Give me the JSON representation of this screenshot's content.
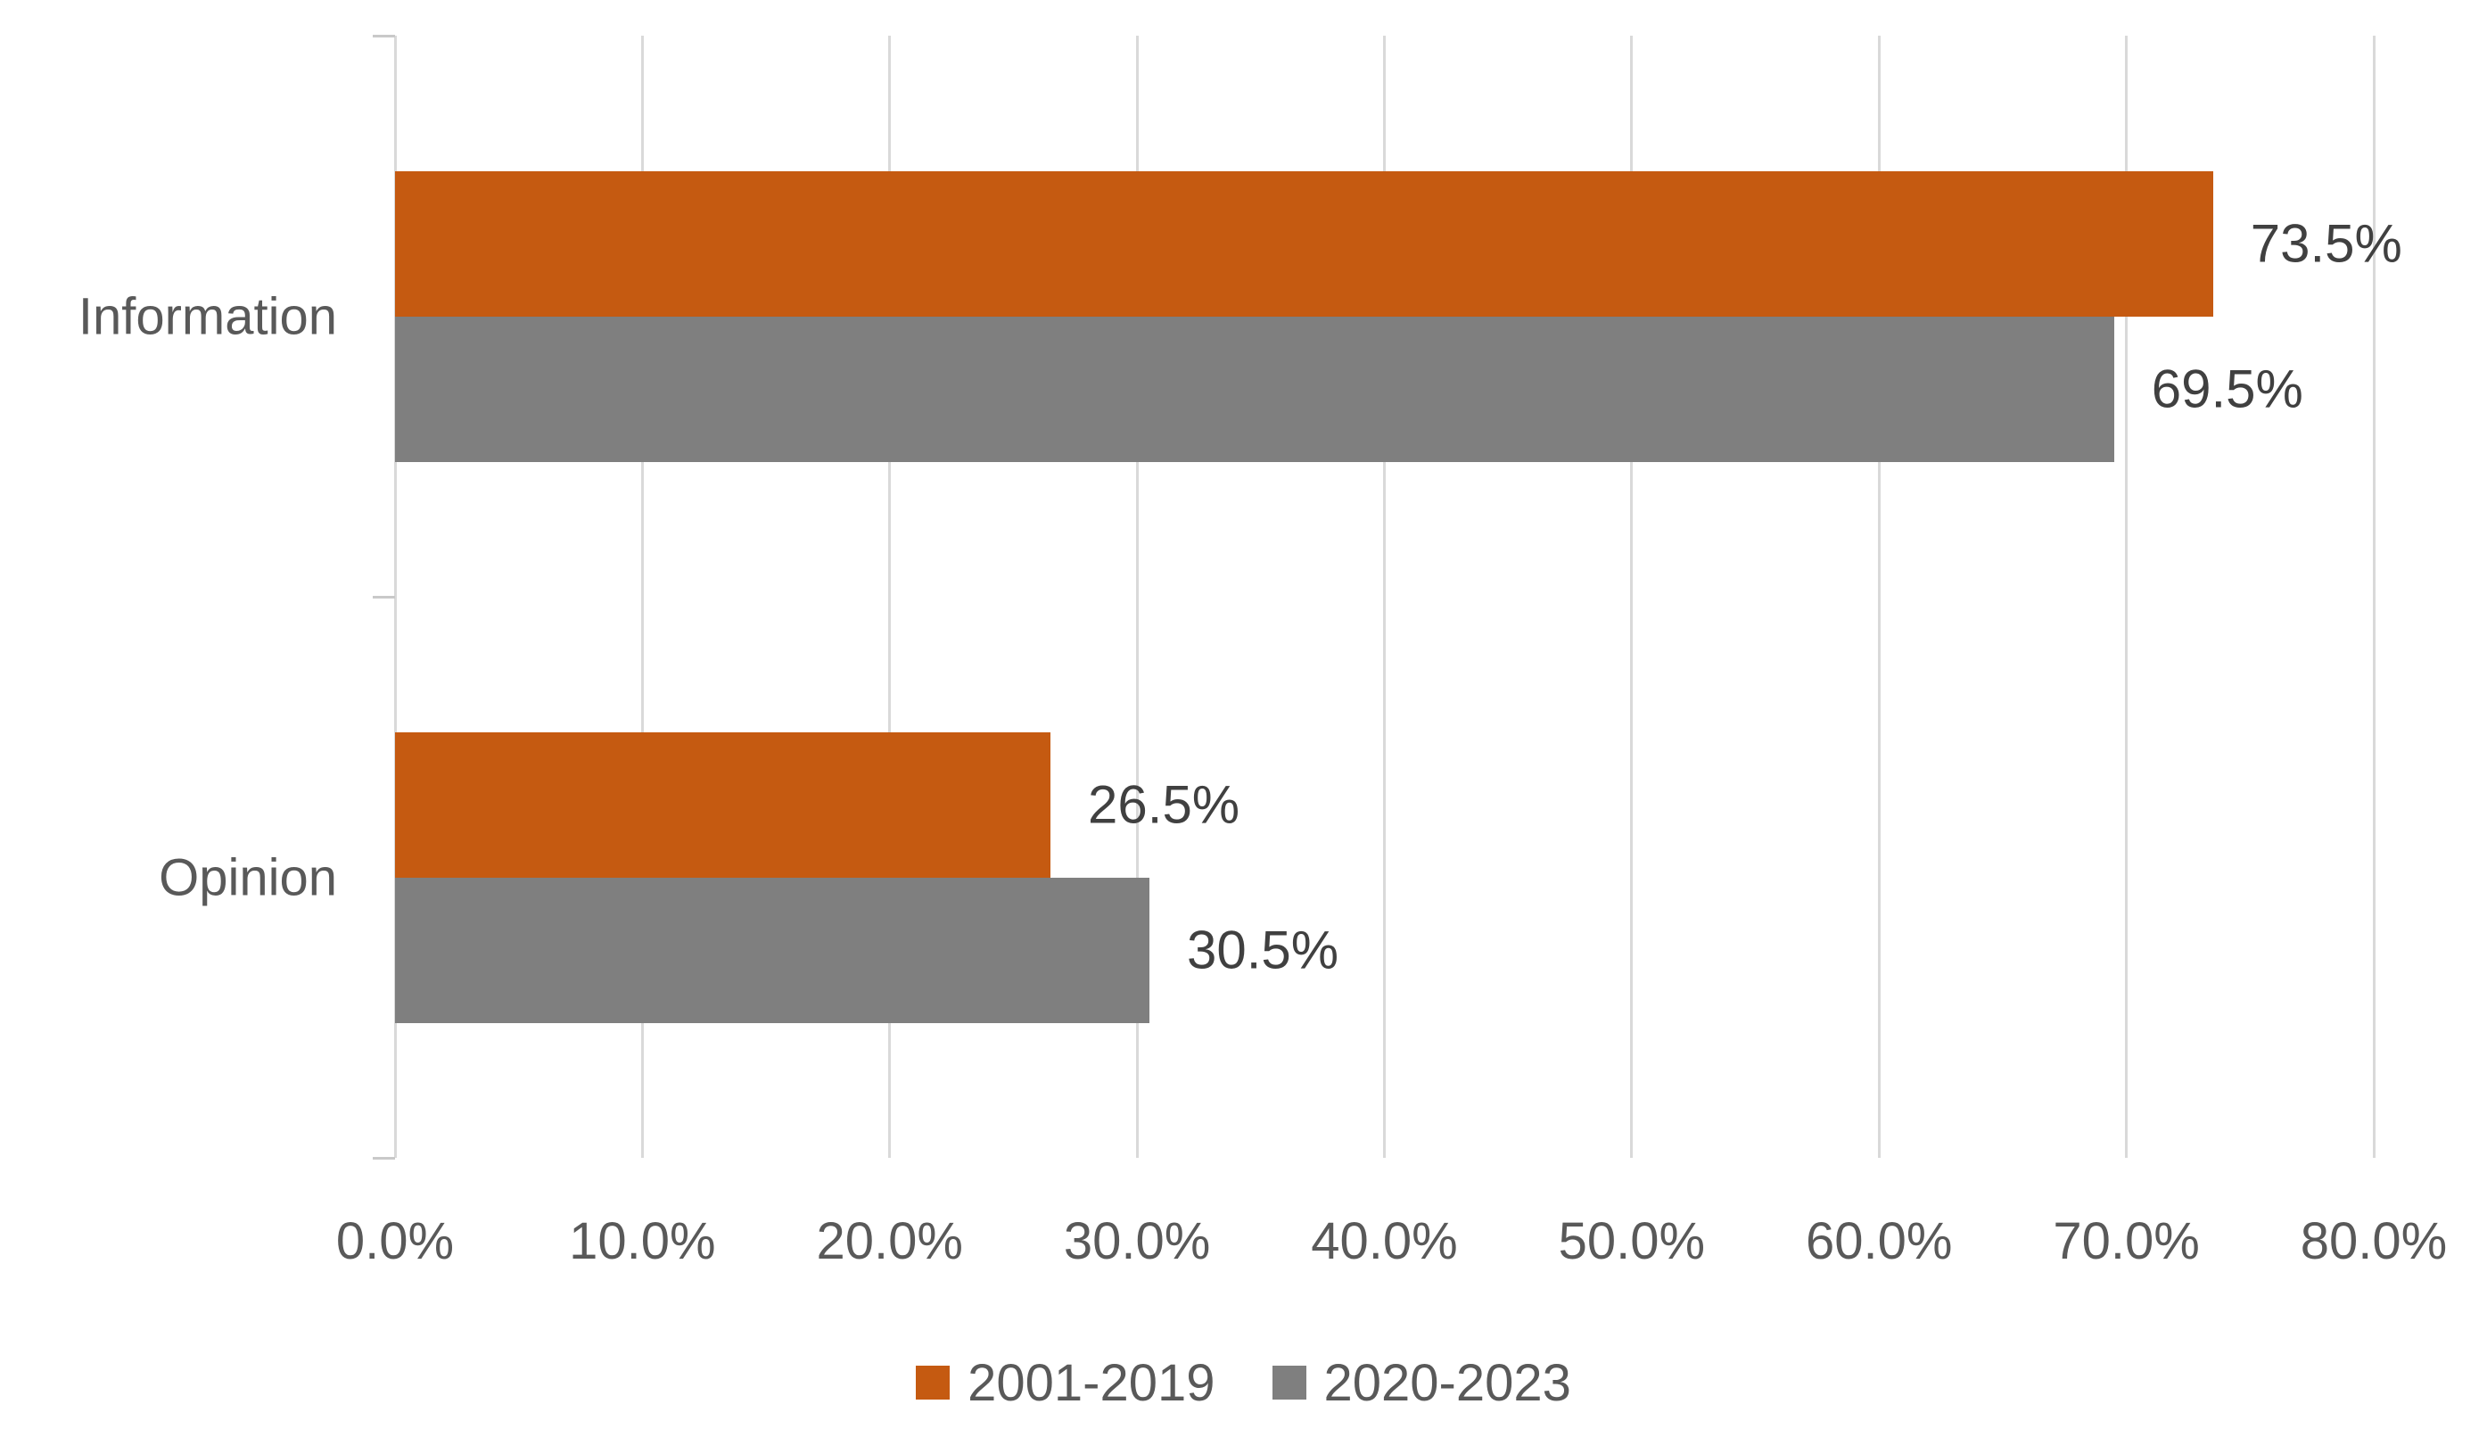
{
  "chart_data": {
    "type": "bar",
    "orientation": "horizontal",
    "title": "",
    "categories": [
      "Information",
      "Opinion"
    ],
    "series": [
      {
        "name": "2001-2019",
        "color": "#C55A11",
        "values": [
          73.5,
          26.5
        ],
        "data_labels": [
          "73.5%",
          "26.5%"
        ]
      },
      {
        "name": "2020-2023",
        "color": "#7F7F7F",
        "values": [
          69.5,
          30.5
        ],
        "data_labels": [
          "69.5%",
          "30.5%"
        ]
      }
    ],
    "x_axis": {
      "min": 0,
      "max": 80,
      "tick_labels": [
        "0.0%",
        "10.0%",
        "20.0%",
        "30.0%",
        "40.0%",
        "50.0%",
        "60.0%",
        "70.0%",
        "80.0%"
      ]
    },
    "grid": true,
    "legend_position": "bottom",
    "colors": {
      "gridline": "#D9D9D9",
      "axis_text": "#595959",
      "data_label_text": "#404040",
      "background": "#FFFFFF"
    }
  },
  "legend": {
    "items": [
      {
        "label": "2001-2019"
      },
      {
        "label": "2020-2023"
      }
    ]
  }
}
